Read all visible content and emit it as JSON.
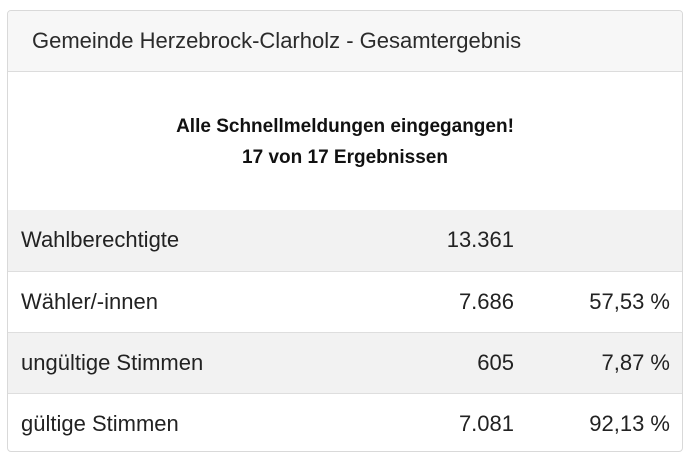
{
  "header": {
    "title": "Gemeinde Herzebrock-Clarholz - Gesamtergebnis"
  },
  "notice": {
    "line1": "Alle Schnellmeldungen eingegangen!",
    "line2": "17 von 17 Ergebnissen"
  },
  "rows": [
    {
      "label": "Wahlberechtigte",
      "count": "13.361",
      "percent": ""
    },
    {
      "label": "Wähler/-innen",
      "count": "7.686",
      "percent": "57,53 %"
    },
    {
      "label": "ungültige Stimmen",
      "count": "605",
      "percent": "7,87 %"
    },
    {
      "label": "gültige Stimmen",
      "count": "7.081",
      "percent": "92,13 %"
    }
  ],
  "colors": {
    "header_bg": "#f7f7f7",
    "row_shade": "#f2f2f2",
    "border": "#d9d9d9"
  }
}
